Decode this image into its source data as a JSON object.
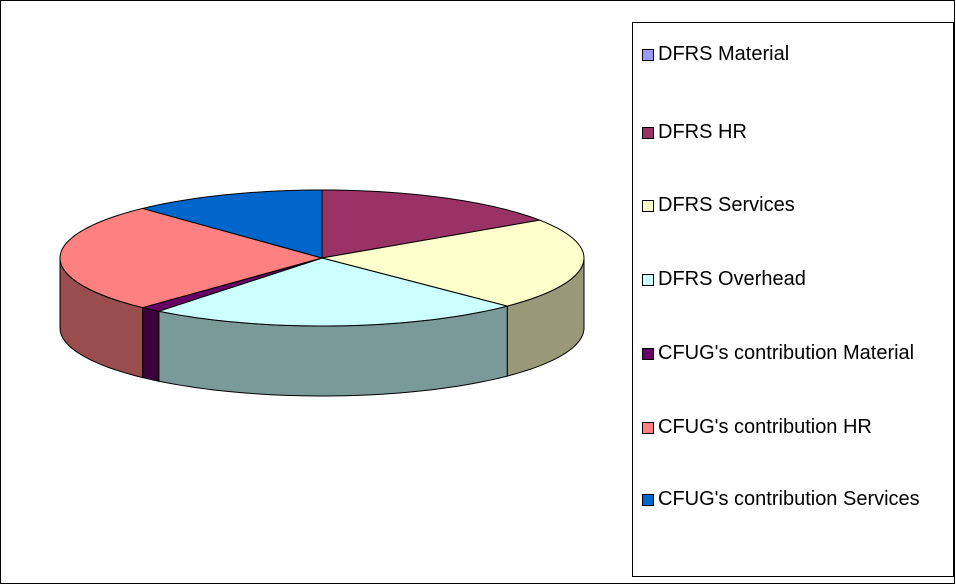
{
  "chart_data": {
    "type": "pie",
    "3d": true,
    "categories": [
      "DFRS Material",
      "DFRS HR",
      "DFRS Services",
      "DFRS Overhead",
      "CFUG's contribution Material",
      "CFUG's contribution HR",
      "CFUG's contribution Services"
    ],
    "values": [
      0,
      15.6,
      21.9,
      23.2,
      1.3,
      26,
      12
    ],
    "colors": [
      "#9999ff",
      "#993366",
      "#ffffcc",
      "#ccffff",
      "#660066",
      "#ff8080",
      "#0066cc"
    ],
    "legend": "right"
  }
}
